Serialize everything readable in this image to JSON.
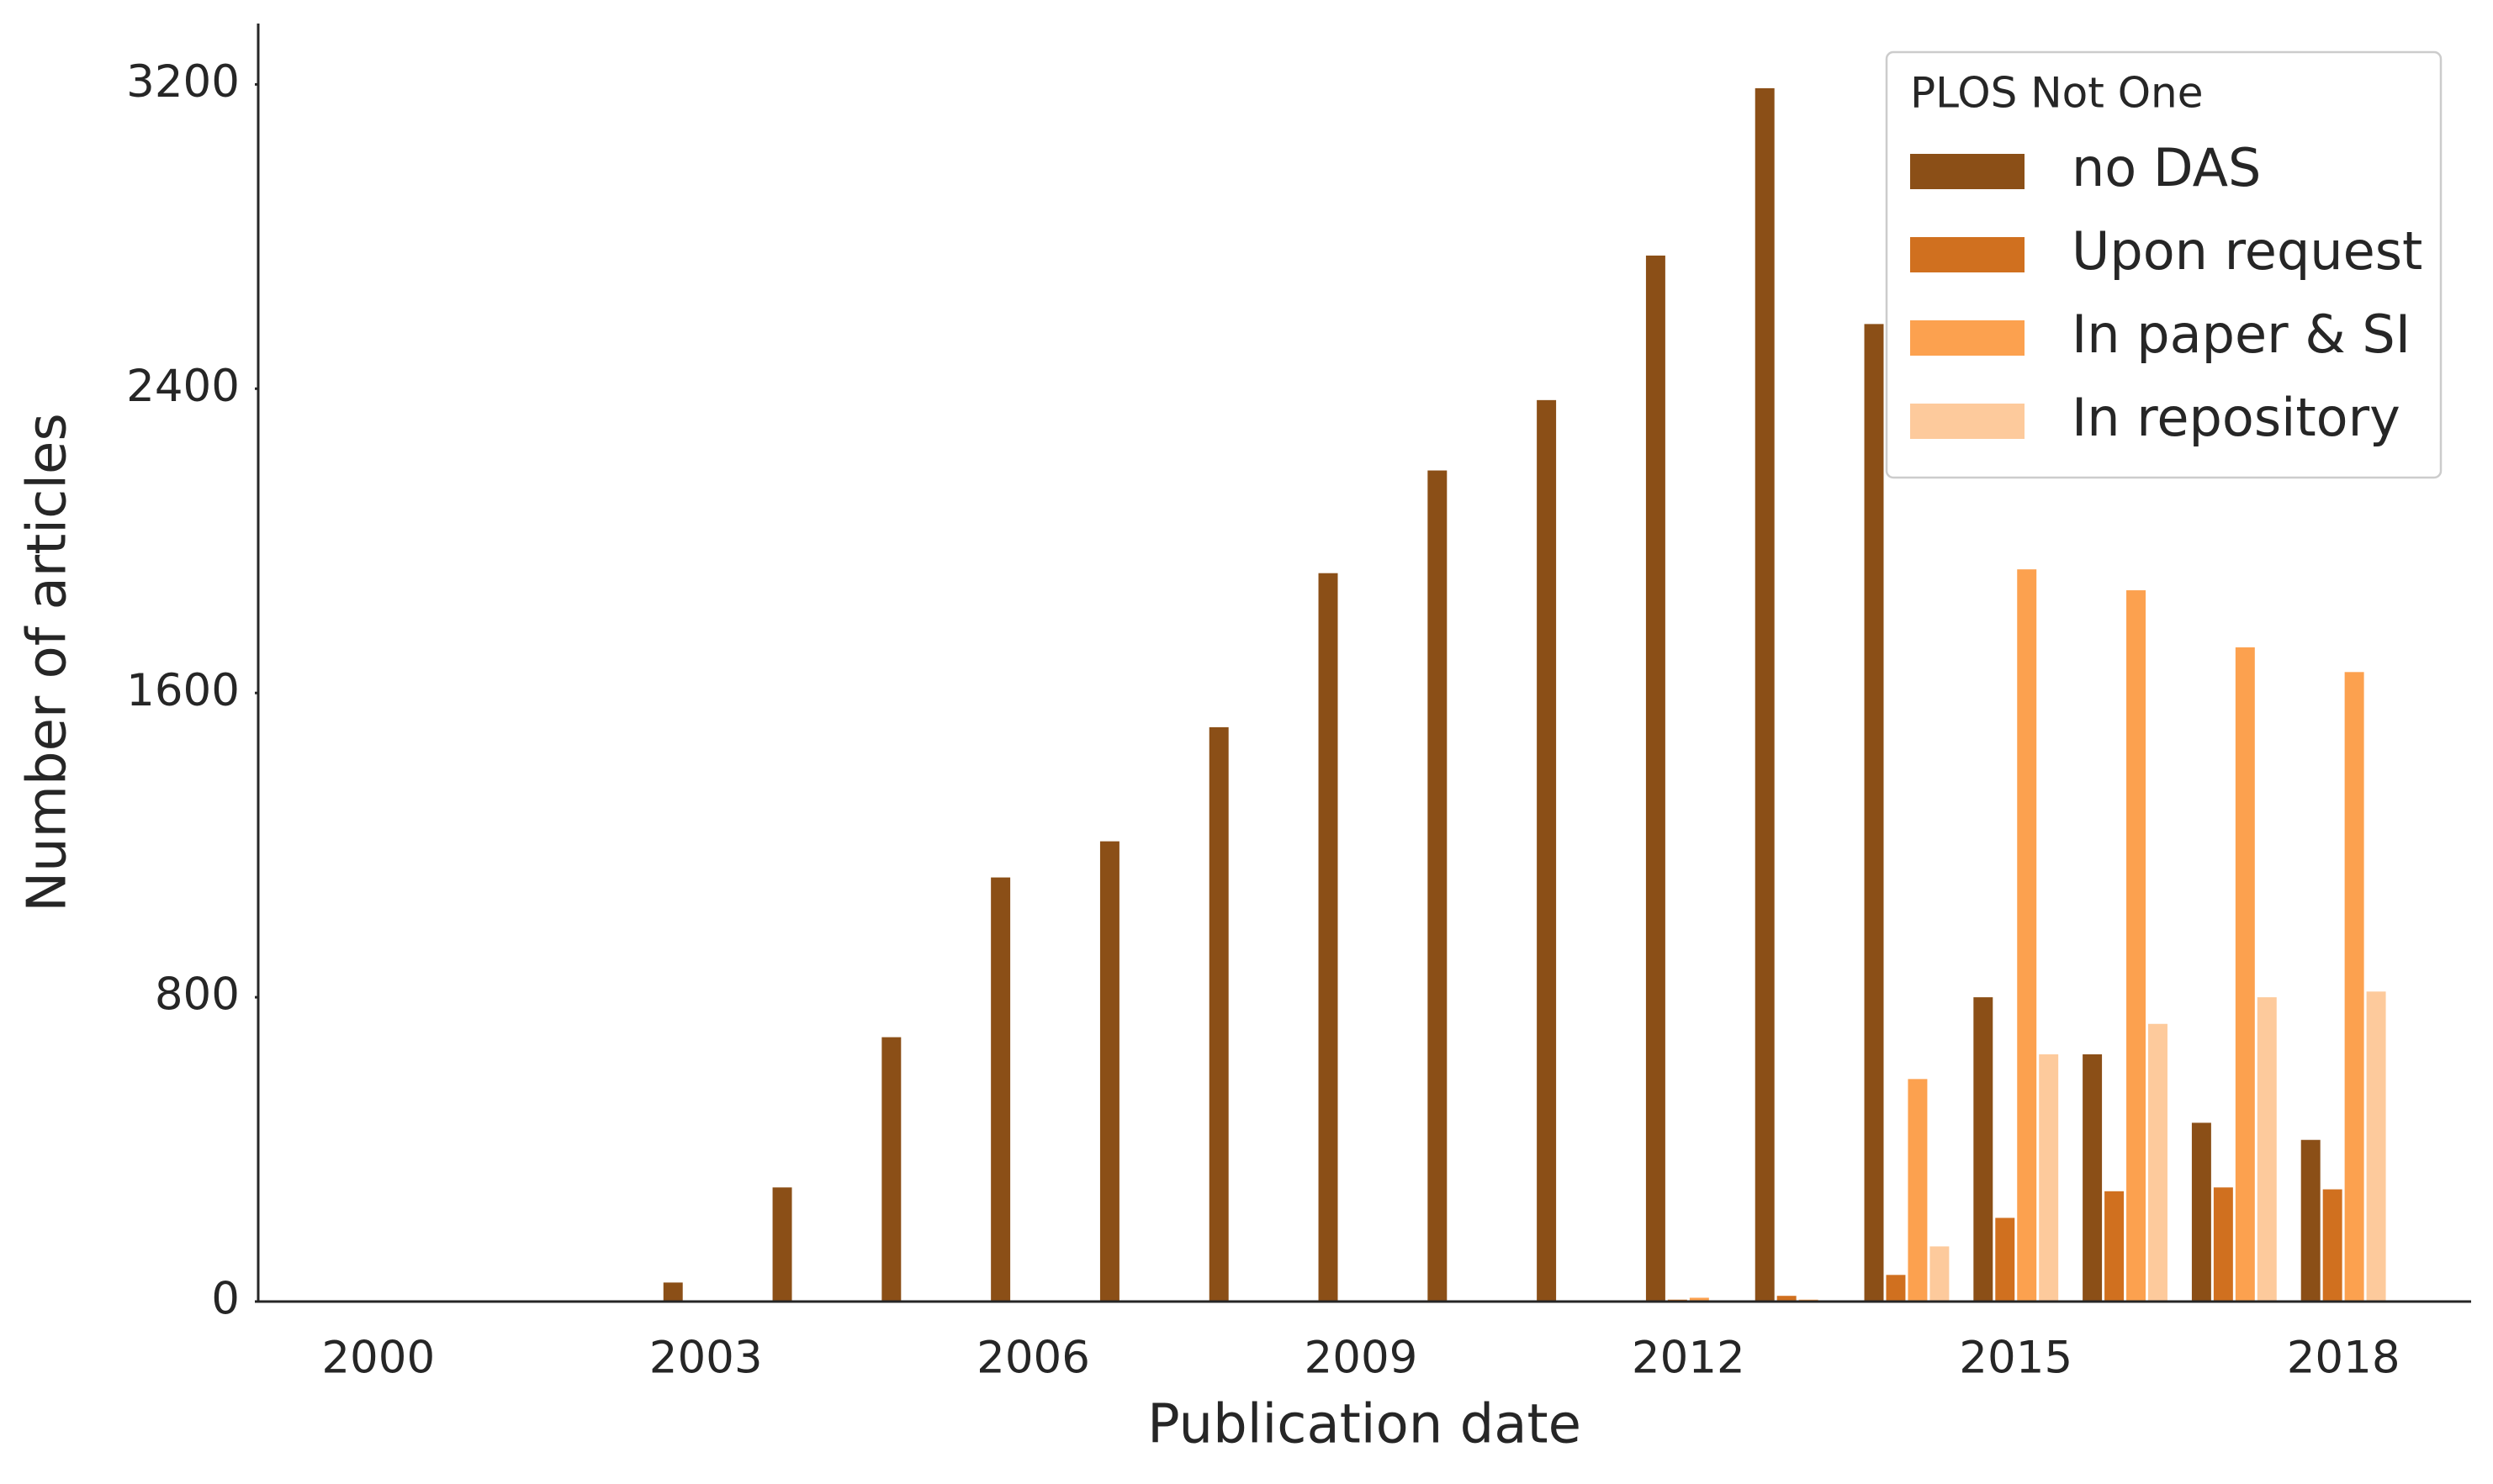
{
  "chart_data": {
    "type": "bar",
    "x_label": "Publication date",
    "y_label": "Number of articles",
    "categories": [
      "2000",
      null,
      null,
      "2003",
      null,
      null,
      "2006",
      null,
      null,
      "2009",
      null,
      null,
      "2012",
      null,
      null,
      "2015",
      null,
      null,
      "2018"
    ],
    "series": [
      {
        "name": "no DAS",
        "color": "#8b4f17",
        "values": [
          0,
          0,
          0,
          50,
          300,
          695,
          1115,
          1210,
          1510,
          1915,
          2185,
          2370,
          2750,
          3190,
          2570,
          800,
          650,
          470,
          425
        ]
      },
      {
        "name": "Upon request",
        "color": "#d0701f",
        "values": [
          0,
          0,
          0,
          0,
          0,
          0,
          0,
          0,
          0,
          0,
          0,
          0,
          5,
          15,
          70,
          220,
          290,
          300,
          295
        ]
      },
      {
        "name": "In paper & SI",
        "color": "#fca14f",
        "values": [
          0,
          0,
          0,
          0,
          0,
          0,
          0,
          0,
          0,
          0,
          0,
          0,
          10,
          5,
          585,
          1925,
          1870,
          1720,
          1655
        ]
      },
      {
        "name": "In repository",
        "color": "#fdca9c",
        "values": [
          0,
          0,
          0,
          0,
          0,
          0,
          0,
          0,
          0,
          0,
          0,
          0,
          0,
          0,
          145,
          650,
          730,
          800,
          815
        ]
      }
    ],
    "ylim": [
      0,
      3360
    ],
    "yticks": [
      0,
      800,
      1600,
      2400,
      3200
    ],
    "grid": false,
    "legend": {
      "title": "PLOS Not One",
      "position": "upper right"
    }
  }
}
